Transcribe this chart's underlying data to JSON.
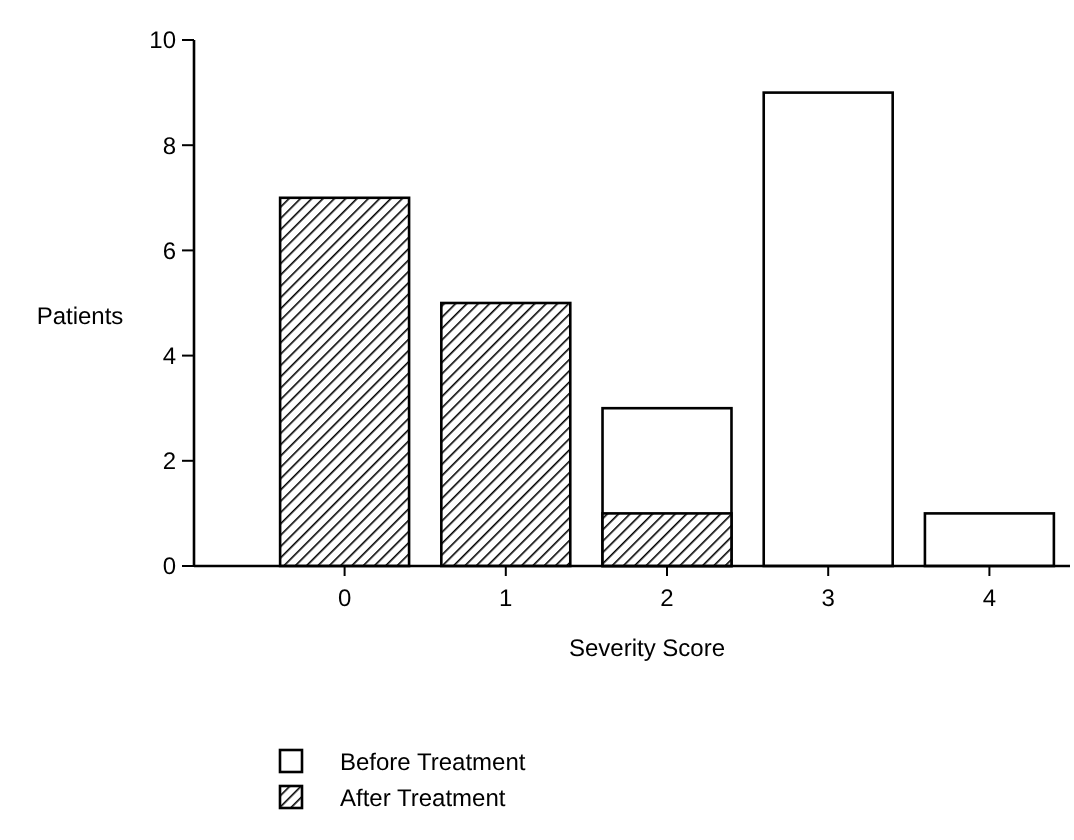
{
  "chart_data": {
    "type": "bar",
    "xlabel": "Severity Score",
    "ylabel": "Patients",
    "categories": [
      "0",
      "1",
      "2",
      "3",
      "4"
    ],
    "ylim": [
      0,
      10
    ],
    "yticks": [
      0,
      2,
      4,
      6,
      8,
      10
    ],
    "legend": "bottom left",
    "series": [
      {
        "name": "Before Treatment",
        "color": "#ffffff",
        "values": [
          0,
          0,
          3,
          9,
          1
        ]
      },
      {
        "name": "After Treatment",
        "color": "#000000",
        "values": [
          7,
          5,
          1,
          0,
          0
        ]
      }
    ]
  }
}
